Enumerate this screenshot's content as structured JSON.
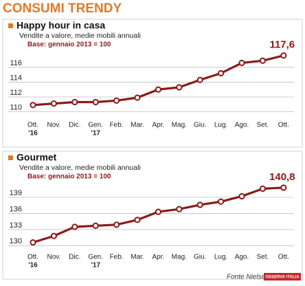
{
  "title": "CONSUMI TRENDY",
  "chart_data": [
    {
      "type": "line",
      "title": "Happy hour in casa",
      "subtitle": "Vendite a valore, medie mobili annuali",
      "note": "Base: gennaio 2013 = 100",
      "categories": [
        "Ott.",
        "Nov.",
        "Dic.",
        "Gen.",
        "Feb.",
        "Mar.",
        "Apr.",
        "Mag.",
        "Giu.",
        "Lug.",
        "Ago.",
        "Set.",
        "Ott."
      ],
      "year_labels": [
        "'16",
        null,
        null,
        "'17",
        null,
        null,
        null,
        null,
        null,
        null,
        null,
        null,
        null
      ],
      "values": [
        110.9,
        111.1,
        111.3,
        111.3,
        111.5,
        111.9,
        113.0,
        113.3,
        114.3,
        115.2,
        116.6,
        116.9,
        117.6
      ],
      "value_labels": [
        null,
        null,
        null,
        null,
        null,
        null,
        null,
        null,
        null,
        null,
        null,
        null,
        "117,6"
      ],
      "color": "#8b1a1a",
      "ylim": [
        109.3,
        118.6
      ],
      "yticks": [
        110,
        112,
        114,
        116
      ],
      "grid": true
    },
    {
      "type": "line",
      "title": "Gourmet",
      "subtitle": "Vendite a valore, medie mobili annuali",
      "note": "Base: gennaio 2013 = 100",
      "categories": [
        "Ott.",
        "Nov.",
        "Dic.",
        "Gen.",
        "Feb.",
        "Mar.",
        "Apr.",
        "Mag.",
        "Giu.",
        "Lug.",
        "Ago.",
        "Set.",
        "Ott."
      ],
      "year_labels": [
        "'16",
        null,
        null,
        "'17",
        null,
        null,
        null,
        null,
        null,
        null,
        null,
        null,
        null
      ],
      "values": [
        130.6,
        131.8,
        133.5,
        133.7,
        133.9,
        134.8,
        136.3,
        136.8,
        137.6,
        138.2,
        139.2,
        140.6,
        140.8
      ],
      "value_labels": [
        null,
        null,
        null,
        null,
        null,
        null,
        null,
        null,
        null,
        null,
        null,
        null,
        "140,8"
      ],
      "color": "#8b1a1a",
      "ylim": [
        129.4,
        142.2
      ],
      "yticks": [
        130,
        133,
        136,
        139
      ],
      "grid": true
    }
  ],
  "source": "Fonte Nielsen",
  "logo": "OSSERVA ITALIA"
}
